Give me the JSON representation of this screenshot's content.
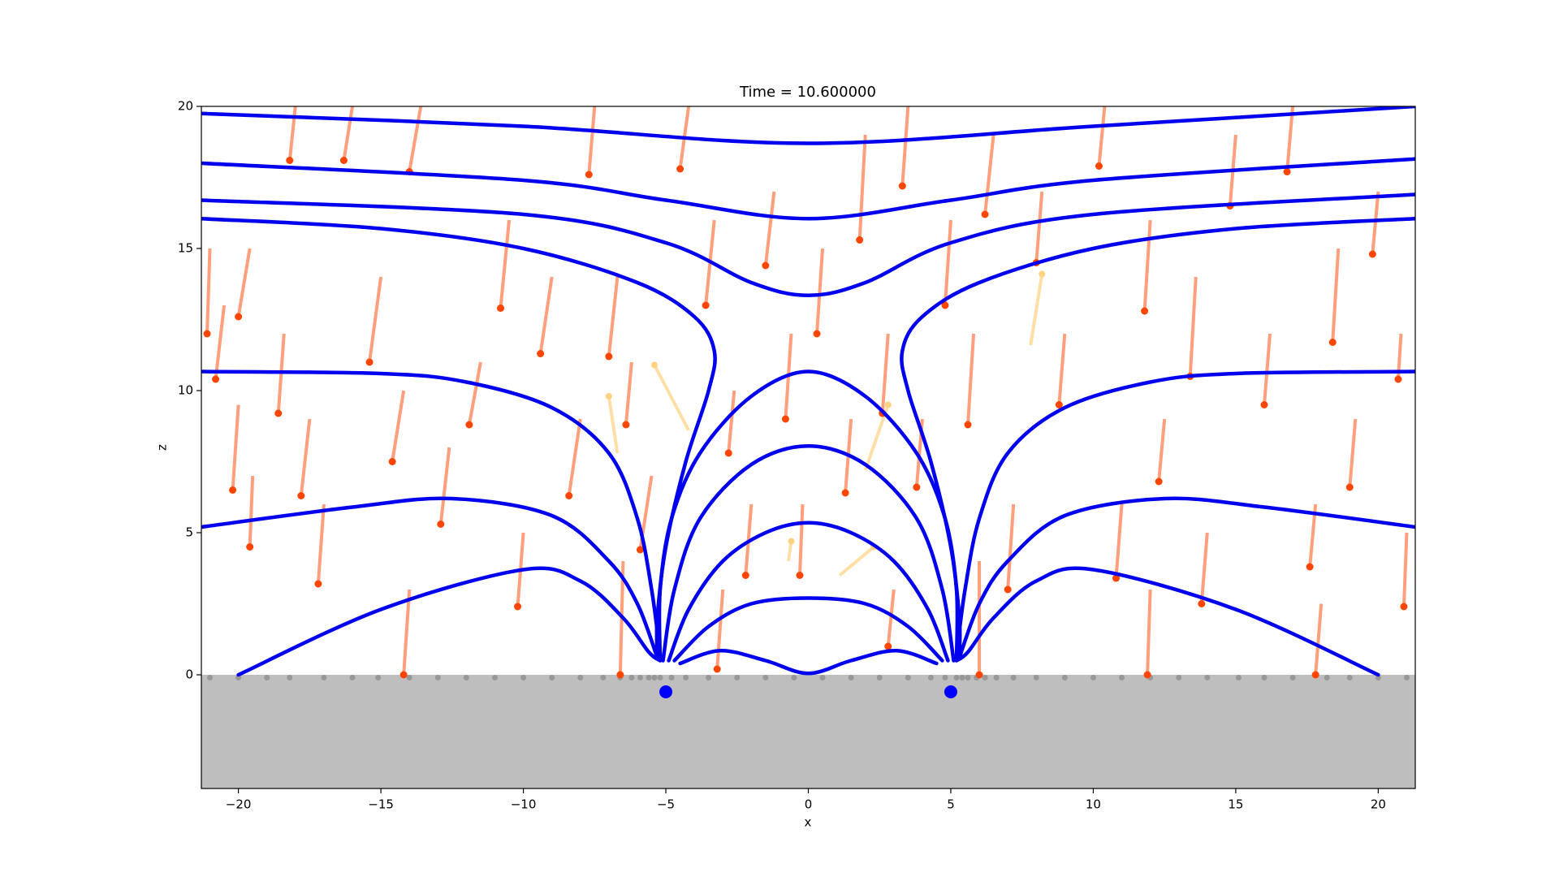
{
  "chart_data": {
    "type": "field",
    "title": "Time = 10.600000",
    "xlabel": "x",
    "ylabel": "z",
    "xlim": [
      -21.3,
      21.3
    ],
    "ylim": [
      -4,
      20
    ],
    "xticks": [
      {
        "value": -20,
        "label": "−20"
      },
      {
        "value": -15,
        "label": "−15"
      },
      {
        "value": -10,
        "label": "−10"
      },
      {
        "value": -5,
        "label": "−5"
      },
      0,
      5,
      10,
      15,
      20
    ],
    "yticks": [
      0,
      5,
      10,
      15,
      20
    ],
    "ground_color": "#bebebe",
    "field_lines": {
      "color": "#0000ee",
      "lines": [
        {
          "x": [
            -21.3,
            -10,
            0,
            10,
            21.3
          ],
          "y": [
            19.75,
            19.3,
            18.7,
            19.3,
            20
          ]
        },
        {
          "x": [
            -21.3,
            -10,
            -5,
            0,
            5,
            10,
            21.3
          ],
          "y": [
            18.0,
            17.4,
            16.7,
            16.05,
            16.7,
            17.4,
            18.15
          ]
        },
        {
          "x": [
            -21.3,
            -10,
            -5,
            -2,
            0,
            2,
            5,
            10,
            21.3
          ],
          "y": [
            16.7,
            16.2,
            15.2,
            13.8,
            13.35,
            13.8,
            15.2,
            16.2,
            16.9
          ]
        },
        {
          "x": [
            -21.3,
            -15,
            -10,
            -6,
            -4,
            -3.3,
            -3.5,
            -4.3,
            -5.0,
            -5.3,
            -5.3
          ],
          "y": [
            16.05,
            15.7,
            15.0,
            13.8,
            12.6,
            11.4,
            10.0,
            7.5,
            4.5,
            2,
            0.6
          ]
        },
        {
          "x": [
            21.3,
            15,
            10,
            6,
            4,
            3.3,
            3.5,
            4.3,
            5.0,
            5.3,
            5.3
          ],
          "y": [
            16.05,
            15.7,
            15.0,
            13.8,
            12.6,
            11.4,
            10.0,
            7.5,
            4.5,
            2,
            0.6
          ]
        },
        {
          "x": [
            -21.3,
            -15,
            -12,
            -9,
            -7,
            -6,
            -5.5,
            -5.2
          ],
          "y": [
            10.67,
            10.6,
            10.3,
            9.4,
            7.8,
            5.5,
            3,
            0.7
          ]
        },
        {
          "x": [
            21.3,
            15,
            12,
            9,
            7,
            6,
            5.5,
            5.2
          ],
          "y": [
            10.67,
            10.6,
            10.3,
            9.4,
            7.8,
            5.5,
            3,
            0.7
          ]
        },
        {
          "x": [
            -21.3,
            -16,
            -12.5,
            -9,
            -7,
            -6,
            -5.3
          ],
          "y": [
            5.2,
            5.9,
            6.2,
            5.6,
            4.0,
            2.5,
            0.6
          ]
        },
        {
          "x": [
            21.3,
            16,
            12.5,
            9,
            7,
            6,
            5.3
          ],
          "y": [
            5.2,
            5.9,
            6.2,
            5.6,
            4.0,
            2.5,
            0.6
          ]
        },
        {
          "x": [
            -20,
            -15,
            -10,
            -8,
            -6.5,
            -5.6,
            -5.2
          ],
          "y": [
            0,
            2.3,
            3.7,
            3.3,
            2.0,
            0.8,
            0.5
          ]
        },
        {
          "x": [
            20,
            15,
            10,
            8,
            6.5,
            5.6,
            5.2
          ],
          "y": [
            0,
            2.3,
            3.7,
            3.3,
            2.0,
            0.8,
            0.5
          ]
        },
        {
          "x": [
            -5.2,
            -5.2,
            -4.8,
            -3.8,
            -2,
            0,
            2,
            3.8,
            4.8,
            5.2,
            5.2
          ],
          "y": [
            0.5,
            3,
            5.5,
            7.8,
            9.8,
            10.67,
            9.8,
            7.8,
            5.5,
            3,
            0.5
          ]
        },
        {
          "x": [
            -5.1,
            -4.7,
            -3.8,
            -2,
            0,
            2,
            3.8,
            4.7,
            5.1
          ],
          "y": [
            0.5,
            3,
            5.5,
            7.4,
            8.05,
            7.4,
            5.5,
            3,
            0.5
          ]
        },
        {
          "x": [
            -4.9,
            -4.2,
            -3,
            -1.5,
            0,
            1.5,
            3,
            4.2,
            4.9
          ],
          "y": [
            0.5,
            2.3,
            4.0,
            5.0,
            5.35,
            5.0,
            4.0,
            2.3,
            0.5
          ]
        },
        {
          "x": [
            -4.7,
            -3.5,
            -2,
            0,
            2,
            3.5,
            4.7
          ],
          "y": [
            0.5,
            1.7,
            2.5,
            2.7,
            2.5,
            1.7,
            0.5
          ]
        },
        {
          "x": [
            -4.5,
            -3.1,
            -1.5,
            0,
            1.5,
            3.1,
            4.5
          ],
          "y": [
            0.4,
            0.85,
            0.5,
            0.05,
            0.5,
            0.85,
            0.4
          ]
        }
      ]
    },
    "trails": {
      "color": "#ff7f50",
      "dot_color": "#ff4500",
      "items": [
        {
          "x": [
            -21,
            -21.1
          ],
          "y": [
            15,
            12.0
          ]
        },
        {
          "x": [
            -20.5,
            -20.8
          ],
          "y": [
            13,
            10.4
          ]
        },
        {
          "x": [
            -20,
            -20.2
          ],
          "y": [
            9.5,
            6.5
          ]
        },
        {
          "x": [
            -19.6,
            -20
          ],
          "y": [
            15,
            12.6
          ]
        },
        {
          "x": [
            -19.5,
            -19.6
          ],
          "y": [
            7,
            4.5
          ]
        },
        {
          "x": [
            -18.4,
            -18.6
          ],
          "y": [
            12,
            9.2
          ]
        },
        {
          "x": [
            -18,
            -18.2
          ],
          "y": [
            20,
            18.1
          ]
        },
        {
          "x": [
            -17.5,
            -17.8
          ],
          "y": [
            9,
            6.3
          ]
        },
        {
          "x": [
            -17,
            -17.2
          ],
          "y": [
            6,
            3.2
          ]
        },
        {
          "x": [
            -16,
            -16.3
          ],
          "y": [
            20,
            18.1
          ]
        },
        {
          "x": [
            -15,
            -15.4
          ],
          "y": [
            14,
            11.0
          ]
        },
        {
          "x": [
            -14.2,
            -14.6
          ],
          "y": [
            10,
            7.5
          ]
        },
        {
          "x": [
            -13.6,
            -14
          ],
          "y": [
            20,
            17.7
          ]
        },
        {
          "x": [
            -12.6,
            -12.9
          ],
          "y": [
            8,
            5.3
          ]
        },
        {
          "x": [
            -11.5,
            -11.9
          ],
          "y": [
            11,
            8.8
          ]
        },
        {
          "x": [
            -10.5,
            -10.8
          ],
          "y": [
            16,
            12.9
          ]
        },
        {
          "x": [
            -10,
            -10.2
          ],
          "y": [
            5,
            2.4
          ]
        },
        {
          "x": [
            -9,
            -9.4
          ],
          "y": [
            14,
            11.3
          ]
        },
        {
          "x": [
            -8,
            -8.4
          ],
          "y": [
            9,
            6.3
          ]
        },
        {
          "x": [
            -7.5,
            -7.7
          ],
          "y": [
            20,
            17.6
          ]
        },
        {
          "x": [
            -6.7,
            -7
          ],
          "y": [
            14,
            11.2
          ]
        },
        {
          "x": [
            -6.2,
            -6.4
          ],
          "y": [
            11,
            8.8
          ]
        },
        {
          "x": [
            -5.5,
            -5.9
          ],
          "y": [
            7,
            4.4
          ]
        },
        {
          "x": [
            -4.2,
            -4.5
          ],
          "y": [
            20,
            17.8
          ]
        },
        {
          "x": [
            -3.3,
            -3.6
          ],
          "y": [
            16,
            13.0
          ]
        },
        {
          "x": [
            -2.6,
            -2.8
          ],
          "y": [
            10,
            7.8
          ]
        },
        {
          "x": [
            -2,
            -2.2
          ],
          "y": [
            6,
            3.5
          ]
        },
        {
          "x": [
            -1.2,
            -1.5
          ],
          "y": [
            17,
            14.4
          ]
        },
        {
          "x": [
            -0.6,
            -0.8
          ],
          "y": [
            12,
            9.0
          ]
        },
        {
          "x": [
            -0.2,
            -0.3
          ],
          "y": [
            6,
            3.5
          ]
        },
        {
          "x": [
            0.5,
            0.3
          ],
          "y": [
            15,
            12.0
          ]
        },
        {
          "x": [
            1.5,
            1.3
          ],
          "y": [
            9,
            6.4
          ]
        },
        {
          "x": [
            2,
            1.8
          ],
          "y": [
            19,
            15.3
          ]
        },
        {
          "x": [
            2.8,
            2.6
          ],
          "y": [
            12,
            9.2
          ]
        },
        {
          "x": [
            3.5,
            3.3
          ],
          "y": [
            20,
            17.2
          ]
        },
        {
          "x": [
            4,
            3.8
          ],
          "y": [
            9,
            6.6
          ]
        },
        {
          "x": [
            5,
            4.8
          ],
          "y": [
            16,
            13.0
          ]
        },
        {
          "x": [
            5.8,
            5.6
          ],
          "y": [
            12,
            8.8
          ]
        },
        {
          "x": [
            6.5,
            6.2
          ],
          "y": [
            19,
            16.2
          ]
        },
        {
          "x": [
            7.2,
            7.0
          ],
          "y": [
            6,
            3.0
          ]
        },
        {
          "x": [
            8.2,
            8
          ],
          "y": [
            17,
            14.5
          ]
        },
        {
          "x": [
            9,
            8.8
          ],
          "y": [
            12,
            9.5
          ]
        },
        {
          "x": [
            10.4,
            10.2
          ],
          "y": [
            20,
            17.9
          ]
        },
        {
          "x": [
            11,
            10.8
          ],
          "y": [
            6,
            3.4
          ]
        },
        {
          "x": [
            12,
            11.8
          ],
          "y": [
            16,
            12.8
          ]
        },
        {
          "x": [
            12.5,
            12.3
          ],
          "y": [
            9,
            6.8
          ]
        },
        {
          "x": [
            13.6,
            13.4
          ],
          "y": [
            14,
            10.5
          ]
        },
        {
          "x": [
            14,
            13.8
          ],
          "y": [
            5,
            2.5
          ]
        },
        {
          "x": [
            15,
            14.8
          ],
          "y": [
            19,
            16.5
          ]
        },
        {
          "x": [
            16.2,
            16
          ],
          "y": [
            12,
            9.5
          ]
        },
        {
          "x": [
            17,
            16.8
          ],
          "y": [
            20,
            17.7
          ]
        },
        {
          "x": [
            17.8,
            17.6
          ],
          "y": [
            6,
            3.8
          ]
        },
        {
          "x": [
            18.6,
            18.4
          ],
          "y": [
            15,
            11.7
          ]
        },
        {
          "x": [
            19.2,
            19
          ],
          "y": [
            9,
            6.6
          ]
        },
        {
          "x": [
            20,
            19.8
          ],
          "y": [
            17,
            14.8
          ]
        },
        {
          "x": [
            20.8,
            20.7
          ],
          "y": [
            12,
            10.4
          ]
        },
        {
          "x": [
            21,
            20.9
          ],
          "y": [
            5,
            2.4
          ]
        },
        {
          "x": [
            -6.5,
            -6.6
          ],
          "y": [
            4,
            0
          ]
        },
        {
          "x": [
            -3,
            -3.2
          ],
          "y": [
            3,
            0.2
          ]
        },
        {
          "x": [
            3,
            2.8
          ],
          "y": [
            3,
            1
          ]
        },
        {
          "x": [
            6,
            6
          ],
          "y": [
            4,
            0
          ]
        },
        {
          "x": [
            12,
            11.9
          ],
          "y": [
            3,
            0
          ]
        },
        {
          "x": [
            -14,
            -14.2
          ],
          "y": [
            3,
            0
          ]
        },
        {
          "x": [
            18,
            17.8
          ],
          "y": [
            2.5,
            0
          ]
        }
      ]
    },
    "faded_trails": {
      "color": "#ffd27f",
      "items": [
        {
          "x": [
            -6.7,
            -7
          ],
          "y": [
            7.8,
            9.8
          ]
        },
        {
          "x": [
            -4.2,
            -5.4
          ],
          "y": [
            8.6,
            10.9
          ]
        },
        {
          "x": [
            2,
            2.8
          ],
          "y": [
            7.2,
            9.5
          ]
        },
        {
          "x": [
            1.1,
            2.3
          ],
          "y": [
            3.5,
            4.5
          ]
        },
        {
          "x": [
            7.8,
            8.2
          ],
          "y": [
            11.6,
            14.1
          ]
        },
        {
          "x": [
            -0.7,
            -0.6
          ],
          "y": [
            4,
            4.7
          ]
        }
      ]
    },
    "ground_particles": {
      "color": "#000000",
      "x": [
        -21,
        -20,
        -19,
        -18.2,
        -17,
        -16,
        -15.1,
        -14,
        -13,
        -12,
        -11,
        -10,
        -9,
        -8,
        -7.2,
        -6.6,
        -6.2,
        -5.9,
        -5.6,
        -5.4,
        -5.2,
        -4.8,
        -4.3,
        -3.5,
        -2.5,
        -1.5,
        -0.5,
        0.5,
        1.5,
        2.5,
        3.5,
        4.3,
        4.8,
        5.2,
        5.4,
        5.6,
        5.9,
        6.2,
        6.6,
        7.2,
        8,
        9,
        10,
        11,
        12,
        13,
        14,
        15.1,
        16,
        17,
        18.2,
        19,
        20,
        21
      ],
      "y": [
        -0.1,
        -0.1,
        -0.1,
        -0.1,
        -0.1,
        -0.1,
        -0.1,
        -0.1,
        -0.1,
        -0.1,
        -0.1,
        -0.1,
        -0.1,
        -0.1,
        -0.1,
        -0.1,
        -0.1,
        -0.1,
        -0.1,
        -0.1,
        -0.1,
        -0.1,
        -0.1,
        -0.1,
        -0.1,
        -0.1,
        -0.1,
        -0.1,
        -0.1,
        -0.1,
        -0.1,
        -0.1,
        -0.1,
        -0.1,
        -0.1,
        -0.1,
        -0.1,
        -0.1,
        -0.1,
        -0.1,
        -0.1,
        -0.1,
        -0.1,
        -0.1,
        -0.1,
        -0.1,
        -0.1,
        -0.1,
        -0.1,
        -0.1,
        -0.1,
        -0.1,
        -0.1,
        -0.1
      ]
    },
    "sources": {
      "color": "#0000ff",
      "x": [
        -5,
        5
      ],
      "y": [
        -0.6,
        -0.6
      ]
    }
  }
}
